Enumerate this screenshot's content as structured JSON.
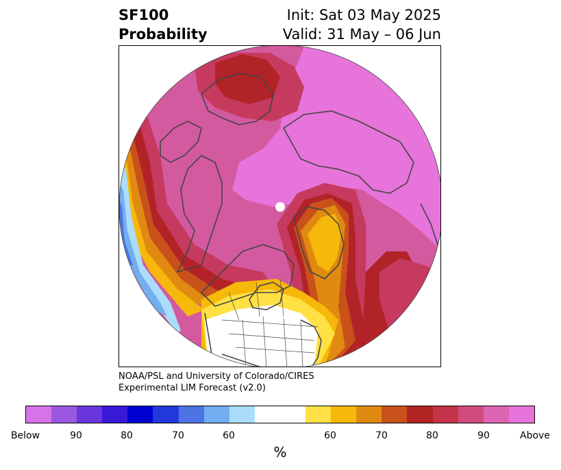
{
  "title": {
    "left_line1": "SF100",
    "left_line2": "Probability",
    "right_line1": "Init: Sat 03 May 2025",
    "right_line2": "Valid: 31 May – 06 Jun"
  },
  "credit": {
    "line1": "NOAA/PSL and University of Colorado/CIRES",
    "line2": "Experimental LIM Forecast (v2.0)"
  },
  "colorbar": {
    "colors": [
      "#d773e8",
      "#9a58e0",
      "#6a35dc",
      "#3a18d8",
      "#0000d0",
      "#2238dc",
      "#4c74e4",
      "#72aef0",
      "#acdcfc",
      "#ffffff",
      "#ffffff",
      "#ffe045",
      "#f6b80a",
      "#e08a12",
      "#c8521a",
      "#b32424",
      "#c53448",
      "#cf4c7c",
      "#dc64b2",
      "#e674da"
    ],
    "tick_labels": [
      "Below",
      "90",
      "80",
      "70",
      "60",
      "60",
      "70",
      "80",
      "90",
      "Above"
    ],
    "unit_label": "%"
  },
  "map": {
    "projection": "north-polar-stereographic",
    "palette": {
      "above_95": "#e674da",
      "above_90": "#d35a9e",
      "above_80": "#c53a5e",
      "above_75": "#b22328",
      "above_70": "#c8521a",
      "above_65": "#e08a12",
      "above_60": "#f6b80a",
      "above_55": "#ffe045",
      "neutral": "#ffffff",
      "below_60": "#acdcfc",
      "below_70": "#72aef0",
      "below_80": "#4c74e4",
      "coast": "#444444"
    }
  }
}
